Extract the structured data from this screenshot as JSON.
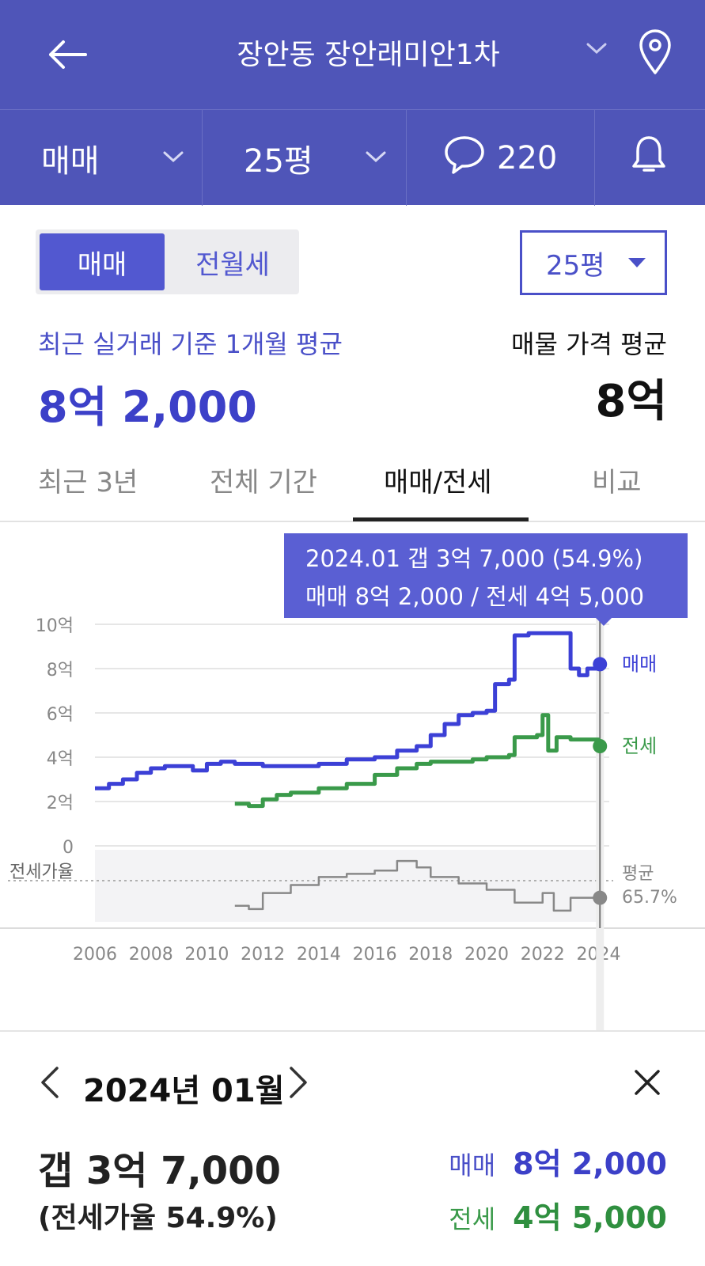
{
  "header": {
    "title": "장안동 장안래미안1차"
  },
  "filters": {
    "deal_type": "매매",
    "size": "25평",
    "comments_count": "220"
  },
  "segment": {
    "active": "매매",
    "inactive": "전월세"
  },
  "size_select": {
    "value": "25평"
  },
  "summary": {
    "recent_label": "최근 실거래 기준 1개월 평균",
    "recent_value": "8억 2,000",
    "listing_label": "매물 가격 평균",
    "listing_value": "8억"
  },
  "tabs": [
    {
      "label": "최근 3년",
      "active": false
    },
    {
      "label": "전체 기간",
      "active": false
    },
    {
      "label": "매매/전세",
      "active": true
    },
    {
      "label": "비교",
      "active": false
    }
  ],
  "tooltip": {
    "line1": "2024.01  갭 3억 7,000 (54.9%)",
    "line2": "매매 8억 2,000 / 전세 4억 5,000"
  },
  "colors": {
    "brand": "#4f55b8",
    "sale": "#3c40d6",
    "jeonse": "#3a9a4a",
    "ratio": "#888888"
  },
  "chart_data": {
    "type": "line",
    "x_unit": "year",
    "xlim": [
      2006,
      2024.1
    ],
    "x_ticks": [
      "2006",
      "2008",
      "2010",
      "2012",
      "2014",
      "2016",
      "2018",
      "2020",
      "2022",
      "2024"
    ],
    "y_ticks": [
      "10억",
      "8억",
      "6억",
      "4억",
      "2억",
      "0"
    ],
    "ylim": [
      0,
      10
    ],
    "y_unit": "억",
    "series": [
      {
        "name": "매매",
        "values": [
          [
            2006.0,
            2.6
          ],
          [
            2006.5,
            2.8
          ],
          [
            2007.0,
            3.0
          ],
          [
            2007.5,
            3.3
          ],
          [
            2008.0,
            3.5
          ],
          [
            2008.5,
            3.6
          ],
          [
            2009.0,
            3.6
          ],
          [
            2009.5,
            3.4
          ],
          [
            2010.0,
            3.7
          ],
          [
            2010.5,
            3.8
          ],
          [
            2011.0,
            3.7
          ],
          [
            2012.0,
            3.6
          ],
          [
            2013.0,
            3.6
          ],
          [
            2014.0,
            3.7
          ],
          [
            2015.0,
            3.9
          ],
          [
            2016.0,
            4.0
          ],
          [
            2016.8,
            4.3
          ],
          [
            2017.5,
            4.5
          ],
          [
            2018.0,
            5.0
          ],
          [
            2018.5,
            5.5
          ],
          [
            2019.0,
            5.9
          ],
          [
            2019.5,
            6.0
          ],
          [
            2020.0,
            6.1
          ],
          [
            2020.3,
            7.3
          ],
          [
            2020.8,
            7.5
          ],
          [
            2021.0,
            9.5
          ],
          [
            2021.5,
            9.6
          ],
          [
            2022.0,
            9.6
          ],
          [
            2022.5,
            9.6
          ],
          [
            2022.9,
            9.6
          ],
          [
            2023.0,
            8.0
          ],
          [
            2023.3,
            7.7
          ],
          [
            2023.6,
            8.0
          ],
          [
            2024.0,
            8.2
          ]
        ]
      },
      {
        "name": "전세",
        "values": [
          [
            2011.0,
            1.9
          ],
          [
            2011.5,
            1.8
          ],
          [
            2012.0,
            2.1
          ],
          [
            2012.5,
            2.3
          ],
          [
            2013.0,
            2.4
          ],
          [
            2014.0,
            2.6
          ],
          [
            2015.0,
            2.8
          ],
          [
            2016.0,
            3.2
          ],
          [
            2016.8,
            3.5
          ],
          [
            2017.5,
            3.7
          ],
          [
            2018.0,
            3.8
          ],
          [
            2019.0,
            3.8
          ],
          [
            2019.5,
            3.9
          ],
          [
            2020.0,
            4.0
          ],
          [
            2020.8,
            4.1
          ],
          [
            2021.0,
            4.9
          ],
          [
            2021.8,
            5.0
          ],
          [
            2022.0,
            5.9
          ],
          [
            2022.2,
            4.3
          ],
          [
            2022.5,
            4.9
          ],
          [
            2023.0,
            4.8
          ],
          [
            2023.5,
            4.8
          ],
          [
            2024.0,
            4.5
          ]
        ]
      },
      {
        "name": "전세가율",
        "values": [
          [
            2011.0,
            50
          ],
          [
            2011.5,
            48
          ],
          [
            2012.0,
            58
          ],
          [
            2013.0,
            63
          ],
          [
            2014.0,
            68
          ],
          [
            2015.0,
            70
          ],
          [
            2016.0,
            72
          ],
          [
            2016.8,
            78
          ],
          [
            2017.5,
            74
          ],
          [
            2018.0,
            68
          ],
          [
            2019.0,
            64
          ],
          [
            2020.0,
            60
          ],
          [
            2021.0,
            52
          ],
          [
            2022.0,
            58
          ],
          [
            2022.4,
            47
          ],
          [
            2023.0,
            55
          ],
          [
            2024.0,
            55
          ]
        ]
      }
    ],
    "ratio_avg_label": "평균",
    "ratio_avg_value": "65.7%",
    "ratio_axis_label": "전세가율",
    "selected_x": "2024.01"
  },
  "detail": {
    "month": "2024년 01월",
    "gap": "갭 3억 7,000",
    "ratio": "(전세가율 54.9%)",
    "sale_label": "매매",
    "sale_value": "8억 2,000",
    "jeonse_label": "전세",
    "jeonse_value": "4억 5,000"
  }
}
